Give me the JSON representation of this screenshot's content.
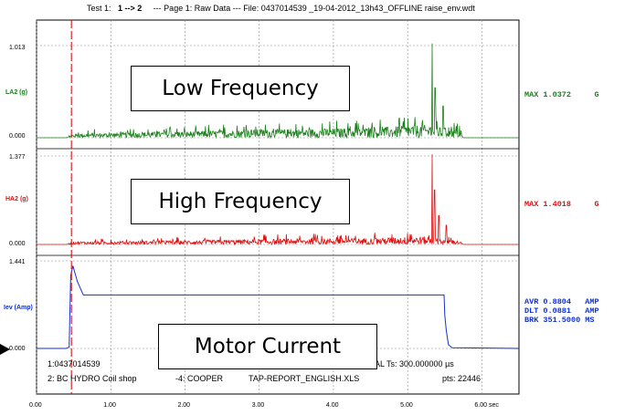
{
  "header": {
    "test_prefix": "Test 1:",
    "test_range": "1 --> 2",
    "rest": "--- Page 1: Raw Data --- File: 0437014539 _19-04-2012_13h43_OFFLINE raise_env.wdt"
  },
  "colors": {
    "la2": "#1a7f1a",
    "ha2": "#e01010",
    "iev": "#1030d0",
    "cursor": "#cc0000",
    "grid": "#8c8c8c"
  },
  "chart_data": [
    {
      "type": "line",
      "name": "LA2 (g)",
      "ylabel": "LA2 (g)",
      "ylim": [
        0.0,
        1.013
      ],
      "ytick_labels": [
        "1.013",
        "0.000"
      ],
      "readout": "MAX 1.0372     G",
      "xlim": [
        0,
        6.5
      ],
      "peaks": [
        {
          "x": 5.33,
          "y": 1.0372
        },
        {
          "x": 5.37,
          "y": 0.55
        },
        {
          "x": 5.48,
          "y": 0.35
        },
        {
          "x": 5.59,
          "y": 0.12
        }
      ],
      "noise_levels": [
        {
          "x": 0.4,
          "y": 0.0
        },
        {
          "x": 0.5,
          "y": 0.05
        },
        {
          "x": 1.5,
          "y": 0.07
        },
        {
          "x": 3.0,
          "y": 0.1
        },
        {
          "x": 4.5,
          "y": 0.12
        },
        {
          "x": 5.2,
          "y": 0.16
        },
        {
          "x": 5.7,
          "y": 0.09
        },
        {
          "x": 5.75,
          "y": 0.0
        }
      ]
    },
    {
      "type": "line",
      "name": "HA2 (g)",
      "ylabel": "HA2 (g)",
      "ylim": [
        0.0,
        1.377
      ],
      "ytick_labels": [
        "1.377",
        "0.000"
      ],
      "readout": "MAX 1.4018     G",
      "xlim": [
        0,
        6.5
      ],
      "peaks": [
        {
          "x": 5.33,
          "y": 1.4018
        },
        {
          "x": 5.36,
          "y": 0.85
        },
        {
          "x": 5.42,
          "y": 0.45
        },
        {
          "x": 5.52,
          "y": 0.3
        }
      ],
      "noise_levels": [
        {
          "x": 0.4,
          "y": 0.0
        },
        {
          "x": 0.5,
          "y": 0.05
        },
        {
          "x": 1.5,
          "y": 0.06
        },
        {
          "x": 3.0,
          "y": 0.09
        },
        {
          "x": 4.5,
          "y": 0.11
        },
        {
          "x": 5.2,
          "y": 0.14
        },
        {
          "x": 5.7,
          "y": 0.06
        },
        {
          "x": 5.75,
          "y": 0.0
        }
      ]
    },
    {
      "type": "line",
      "name": "Iev (Amp)",
      "ylabel": "Iev (Amp)",
      "ylim": [
        0.0,
        1.441
      ],
      "ytick_labels": [
        "1.441",
        "0.000"
      ],
      "readout_lines": [
        "AVR 0.8804   AMP",
        "DLT 0.0881   AMP",
        "BRK 351.5000 MS"
      ],
      "xlim": [
        0,
        6.5
      ],
      "points": [
        {
          "x": 0.0,
          "y": 0.0
        },
        {
          "x": 0.4,
          "y": 0.0
        },
        {
          "x": 0.44,
          "y": 0.02
        },
        {
          "x": 0.46,
          "y": 1.2
        },
        {
          "x": 0.49,
          "y": 1.36
        },
        {
          "x": 0.55,
          "y": 1.1
        },
        {
          "x": 0.63,
          "y": 0.88
        },
        {
          "x": 5.44,
          "y": 0.88
        },
        {
          "x": 5.49,
          "y": 0.88
        },
        {
          "x": 5.5,
          "y": 0.55
        },
        {
          "x": 5.52,
          "y": 0.3
        },
        {
          "x": 5.55,
          "y": 0.06
        },
        {
          "x": 5.6,
          "y": 0.01
        },
        {
          "x": 6.5,
          "y": 0.0
        }
      ]
    }
  ],
  "x_axis": {
    "ticks": [
      0,
      1,
      2,
      3,
      4,
      5,
      6
    ],
    "tick_labels": [
      "0.00",
      "1.00",
      "2.00",
      "3.00",
      "4.00",
      "5.00",
      "6.00 sec"
    ],
    "cursor_x": 0.47
  },
  "info_line1": {
    "left": "1:0437014539",
    "right": "AL Ts: 300.000000 µs"
  },
  "info_line2": {
    "left": "2: BC HYDRO Coil shop",
    "mid1": "-4: COOPER",
    "mid2": "TAP-REPORT_ENGLISH.XLS",
    "right": "pts: 22446"
  },
  "callouts": {
    "low": "Low Frequency",
    "high": "High Frequency",
    "motor": "Motor Current"
  }
}
